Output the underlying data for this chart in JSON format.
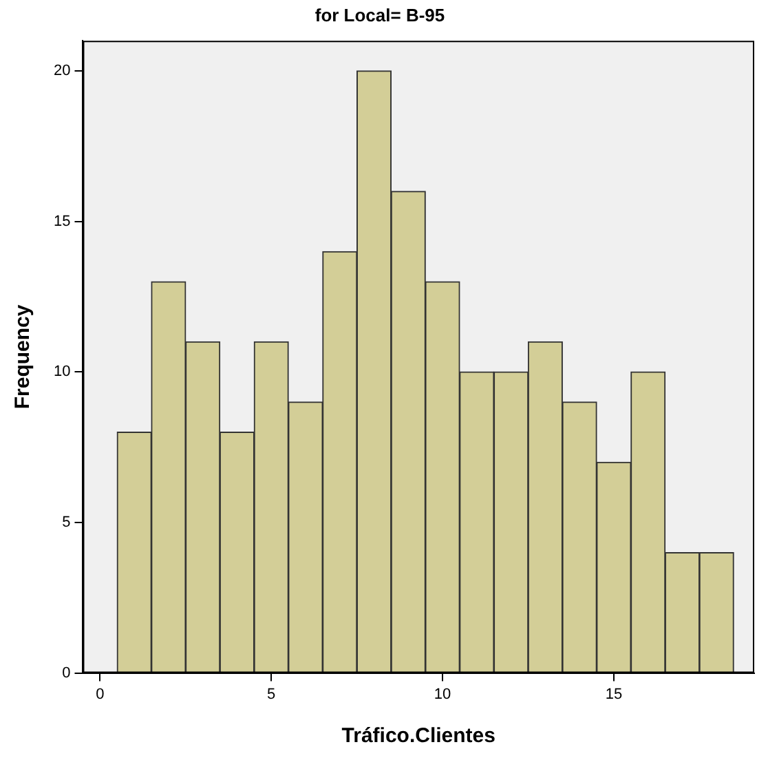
{
  "chart_data": {
    "type": "histogram",
    "title": "for Local= B-95",
    "xlabel": "Tráfico.Clientes",
    "ylabel": "Frequency",
    "bins": [
      0.5,
      1.5,
      2.5,
      3.5,
      4.5,
      5.5,
      6.5,
      7.5,
      8.5,
      9.5,
      10.5,
      11.5,
      12.5,
      13.5,
      14.5,
      15.5,
      16.5,
      17.5,
      18.5
    ],
    "values": [
      8,
      13,
      11,
      8,
      11,
      9,
      14,
      20,
      16,
      13,
      10,
      10,
      11,
      9,
      7,
      10,
      4,
      4
    ],
    "color": "#d3ce97",
    "xlim": [
      -0.5,
      19.1
    ],
    "xticks": [
      0,
      5,
      10,
      15
    ],
    "ylim": [
      0,
      21
    ],
    "yticks": [
      0,
      5,
      10,
      15,
      20
    ],
    "grid": false,
    "legend": false
  }
}
